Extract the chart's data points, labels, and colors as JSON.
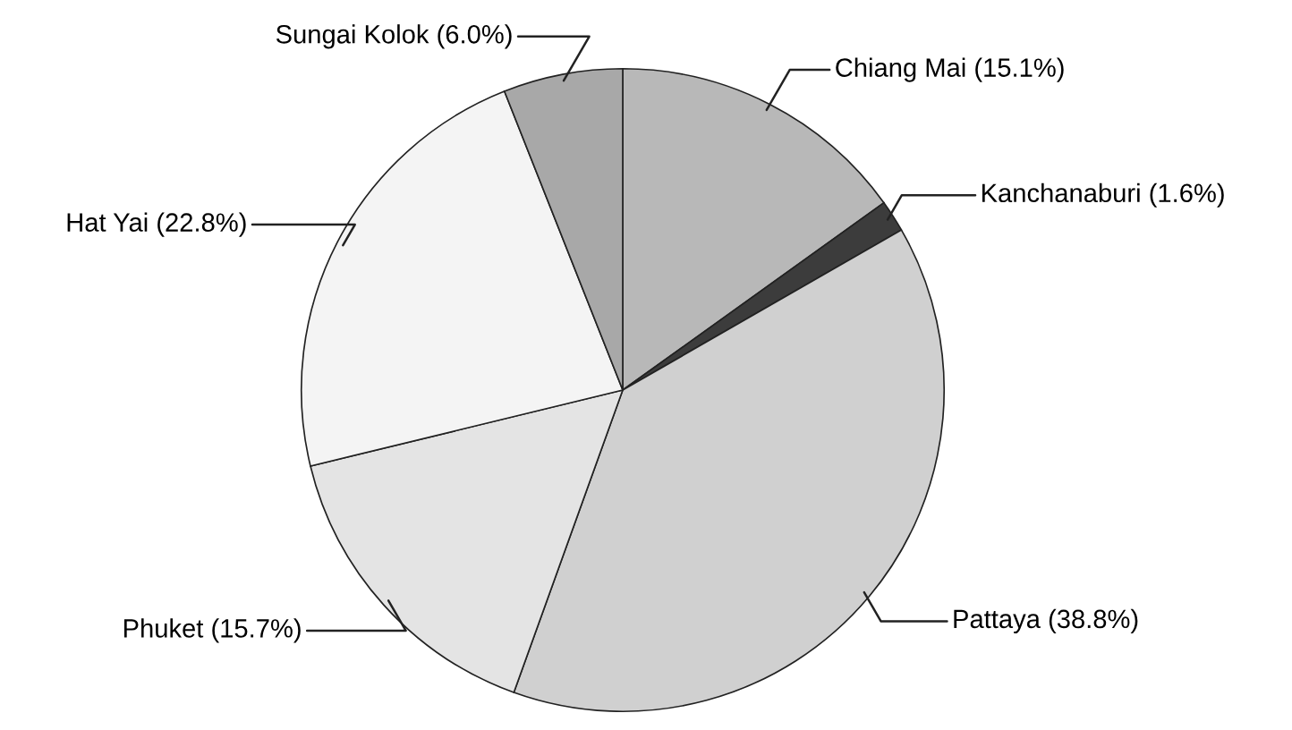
{
  "chart_data": {
    "type": "pie",
    "categories": [
      "Chiang Mai",
      "Kanchanaburi",
      "Pattaya",
      "Phuket",
      "Hat Yai",
      "Sungai Kolok"
    ],
    "values": [
      15.1,
      1.6,
      38.8,
      15.7,
      22.8,
      6.0
    ],
    "value_labels": [
      "(15.1%)",
      "(1.6%)",
      "(38.8%)",
      "(15.7%)",
      "(22.8%)",
      "(6.0%)"
    ],
    "colors": [
      "#b8b8b8",
      "#3c3c3c",
      "#d0d0d0",
      "#e4e4e4",
      "#f4f4f4",
      "#a8a8a8"
    ],
    "legend": false
  }
}
